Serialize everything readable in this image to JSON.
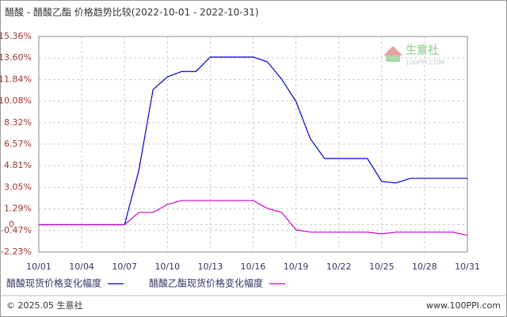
{
  "chart_data": {
    "type": "line",
    "title": "醋酸 - 醋酸乙酯 价格趋势比较(2022-10-01 - 2022-10-31)",
    "categories": [
      "10/01",
      null,
      null,
      "10/04",
      null,
      null,
      "10/07",
      null,
      null,
      "10/10",
      null,
      null,
      "10/13",
      null,
      null,
      "10/16",
      null,
      null,
      "10/19",
      null,
      null,
      "10/22",
      null,
      null,
      "10/25",
      null,
      null,
      "10/28",
      null,
      null,
      "10/31"
    ],
    "series": [
      {
        "name": "醋酸现货价格变化幅度",
        "color": "#0000cc",
        "values": [
          0,
          0,
          0,
          0,
          0,
          0,
          0,
          4.43,
          11.03,
          12.06,
          12.5,
          12.5,
          13.68,
          13.68,
          13.68,
          13.68,
          13.29,
          11.87,
          10.06,
          7.02,
          5.4,
          5.4,
          5.4,
          5.4,
          3.53,
          3.4,
          3.78,
          3.78,
          3.78,
          3.78,
          3.78
        ]
      },
      {
        "name": "醋酸乙酯现货价格变化幅度",
        "color": "#cc00cc",
        "values": [
          0,
          0,
          0,
          0,
          0,
          0,
          0,
          1.0,
          1.0,
          1.65,
          1.97,
          1.97,
          1.97,
          1.97,
          1.97,
          1.97,
          1.33,
          1.0,
          -0.42,
          -0.61,
          -0.61,
          -0.61,
          -0.61,
          -0.61,
          -0.74,
          -0.61,
          -0.61,
          -0.61,
          -0.61,
          -0.61,
          -0.87
        ]
      }
    ],
    "ylim": [
      -2.23,
      15.36
    ],
    "yticks": [
      {
        "value": 15.36,
        "label": "15.36%"
      },
      {
        "value": 13.6,
        "label": "13.60%"
      },
      {
        "value": 11.84,
        "label": "11.84%"
      },
      {
        "value": 10.08,
        "label": "10.08%"
      },
      {
        "value": 8.32,
        "label": "8.32%"
      },
      {
        "value": 6.57,
        "label": "6.57%"
      },
      {
        "value": 4.81,
        "label": "4.81%"
      },
      {
        "value": 3.05,
        "label": "3.05%"
      },
      {
        "value": 1.29,
        "label": "1.29%"
      },
      0,
      {
        "value": -0.47,
        "label": "-0.47%"
      },
      {
        "value": -2.23,
        "label": "-2.23%"
      }
    ],
    "grid": true
  },
  "watermark": {
    "name": "生意社",
    "site": "100PPI.COM"
  },
  "footer": {
    "copyright": "© 2025.05 生意社",
    "site": "www.100PPI.com"
  }
}
